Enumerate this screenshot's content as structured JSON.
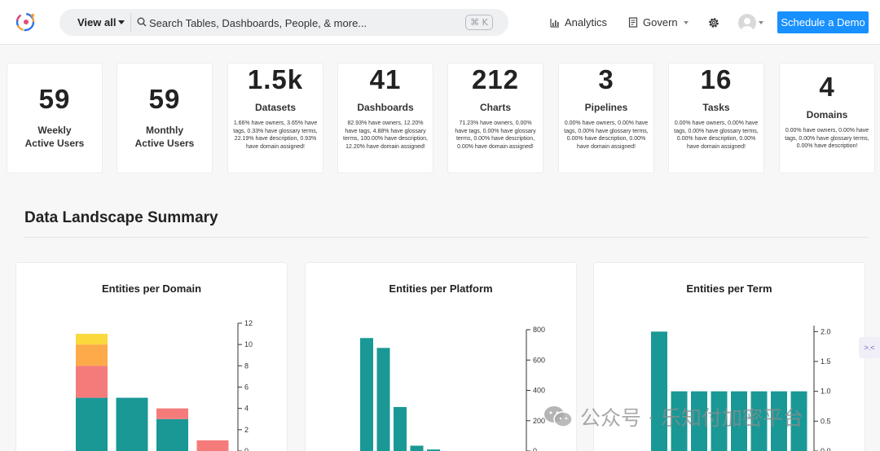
{
  "header": {
    "view_all": "View all",
    "search_placeholder": "Search Tables, Dashboards, People, & more...",
    "shortcut": "⌘ K",
    "nav": {
      "analytics": "Analytics",
      "govern": "Govern"
    },
    "schedule_demo": "Schedule a Demo"
  },
  "stats": [
    {
      "value": "59",
      "label_line1": "Weekly",
      "label_line2": "Active Users",
      "desc": ""
    },
    {
      "value": "59",
      "label_line1": "Monthly",
      "label_line2": "Active Users",
      "desc": ""
    },
    {
      "value": "1.5k",
      "label_line1": "Datasets",
      "label_line2": "",
      "desc": "1.66% have owners, 3.65% have tags, 0.33% have glossary terms, 22.19% have description, 0.93% have domain assigned!"
    },
    {
      "value": "41",
      "label_line1": "Dashboards",
      "label_line2": "",
      "desc": "82.93% have owners, 12.20% have tags, 4.88% have glossary terms, 100.00% have description, 12.20% have domain assigned!"
    },
    {
      "value": "212",
      "label_line1": "Charts",
      "label_line2": "",
      "desc": "71.23% have owners, 0.00% have tags, 0.00% have glossary terms, 0.00% have description, 0.00% have domain assigned!"
    },
    {
      "value": "3",
      "label_line1": "Pipelines",
      "label_line2": "",
      "desc": "0.00% have owners, 0.00% have tags, 0.00% have glossary terms, 0.00% have description, 0.00% have domain assigned!"
    },
    {
      "value": "16",
      "label_line1": "Tasks",
      "label_line2": "",
      "desc": "0.00% have owners, 0.00% have tags, 0.00% have glossary terms, 0.00% have description, 0.00% have domain assigned!"
    },
    {
      "value": "4",
      "label_line1": "Domains",
      "label_line2": "",
      "desc": "0.00% have owners, 0.00% have tags, 0.00% have glossary terms, 0.00% have description!"
    }
  ],
  "section": {
    "title": "Data Landscape Summary"
  },
  "side_tab": {
    "text": ">.<"
  },
  "watermark": {
    "text": "公众号 · 乐知付加密平台"
  },
  "colors": {
    "teal": "#1a9896",
    "pink": "#f57b7b",
    "orange": "#fdaa4a",
    "yellow": "#fbd93c",
    "accent": "#1890ff"
  },
  "chart_data": [
    {
      "type": "bar",
      "title": "Entities per Domain",
      "stacked": true,
      "categories": [
        "",
        "",
        "",
        ""
      ],
      "series": [
        {
          "color": "#1a9896",
          "values": [
            5,
            5,
            3,
            0
          ]
        },
        {
          "color": "#f57b7b",
          "values": [
            3,
            0,
            1,
            1
          ]
        },
        {
          "color": "#fdaa4a",
          "values": [
            2,
            0,
            0,
            0
          ]
        },
        {
          "color": "#fbd93c",
          "values": [
            1,
            0,
            0,
            0
          ]
        }
      ],
      "ylim": [
        0,
        12
      ],
      "yticks": [
        0,
        2,
        4,
        6,
        8,
        10,
        12
      ],
      "ytick_labels": [
        "0",
        "2",
        "4",
        "6",
        "8",
        "10",
        "12"
      ],
      "axis_position": "right"
    },
    {
      "type": "bar",
      "title": "Entities per Platform",
      "categories": [
        "",
        "",
        "",
        "",
        "",
        ""
      ],
      "series": [
        {
          "color": "#1a9896",
          "values": [
            745,
            680,
            290,
            35,
            10,
            0
          ]
        }
      ],
      "ylim": [
        0,
        800
      ],
      "yticks": [
        0,
        200,
        400,
        600,
        800
      ],
      "ytick_labels": [
        "0",
        "200",
        "400",
        "600",
        "800"
      ],
      "axis_position": "right"
    },
    {
      "type": "bar",
      "title": "Entities per Term",
      "categories": [
        "",
        "",
        "",
        "",
        "",
        "",
        "",
        ""
      ],
      "series": [
        {
          "color": "#1a9896",
          "values": [
            2,
            1,
            1,
            1,
            1,
            1,
            1,
            1
          ]
        }
      ],
      "ylim": [
        0,
        2.1
      ],
      "yticks": [
        0,
        0.5,
        1,
        1.5,
        2
      ],
      "ytick_labels": [
        "0.0",
        "0.5",
        "1.0",
        "1.5",
        "2.0"
      ],
      "axis_position": "right"
    }
  ]
}
